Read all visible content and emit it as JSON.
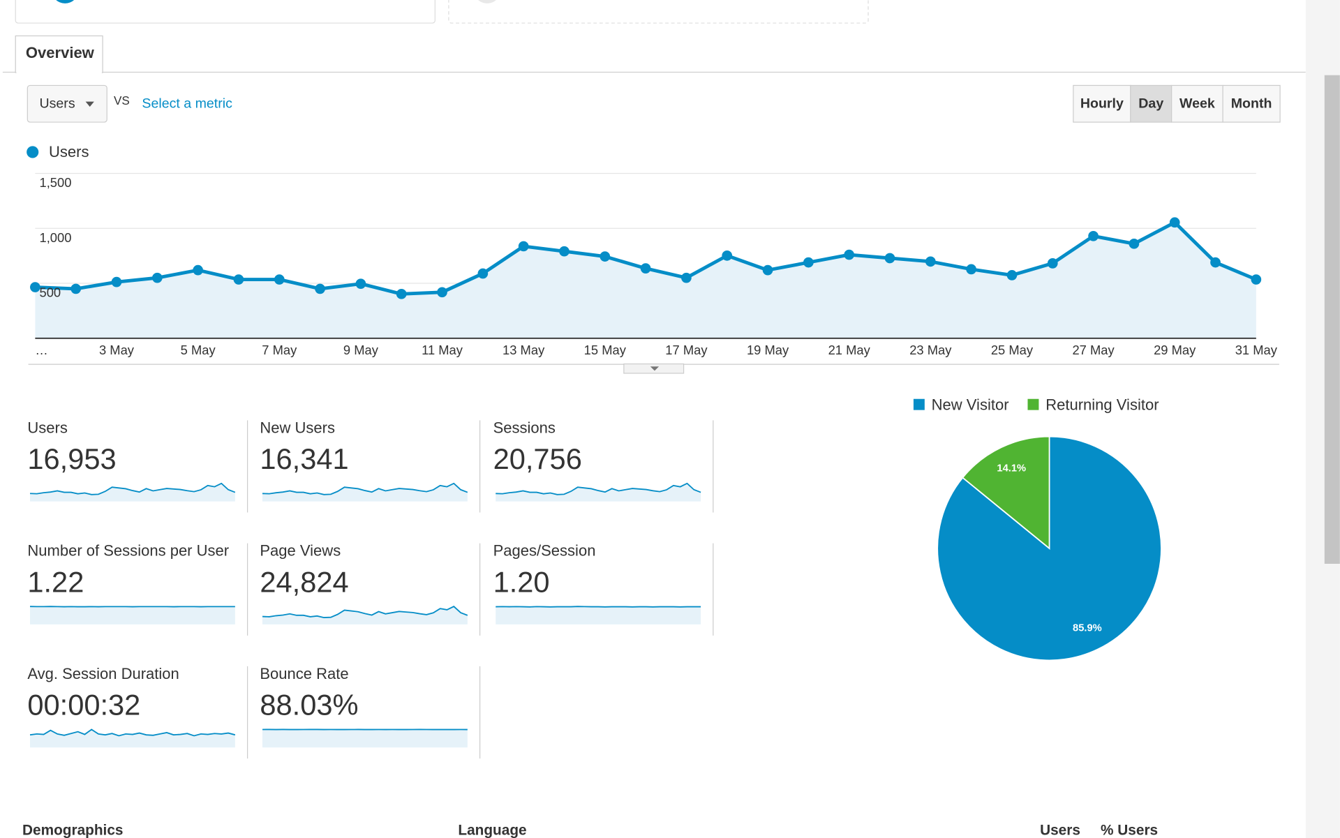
{
  "tabs": [
    "Overview"
  ],
  "controls": {
    "metric": "Users",
    "vs": "VS",
    "select_metric": "Select a metric",
    "periods": [
      "Hourly",
      "Day",
      "Week",
      "Month"
    ],
    "active_period": 1
  },
  "chart_data": [
    {
      "type": "line",
      "area": true,
      "grid": true,
      "categories": [
        "…",
        null,
        "3 May",
        null,
        "5 May",
        null,
        "7 May",
        null,
        "9 May",
        null,
        "11 May",
        null,
        "13 May",
        null,
        "15 May",
        null,
        "17 May",
        null,
        "19 May",
        null,
        "21 May",
        null,
        "23 May",
        null,
        "25 May",
        null,
        "27 May",
        null,
        "29 May",
        null,
        "31 May"
      ],
      "series": [
        {
          "name": "Users",
          "color": "#058dc7",
          "values": [
            465,
            450,
            512,
            550,
            620,
            535,
            535,
            450,
            496,
            403,
            419,
            589,
            837,
            791,
            744,
            636,
            550,
            752,
            620,
            690,
            760,
            729,
            698,
            628,
            574,
            682,
            930,
            860,
            1054,
            690,
            535
          ]
        }
      ],
      "ylim": [
        0,
        1500
      ],
      "yticks": [
        500,
        {
          "value": 1000,
          "label": "1,000"
        },
        {
          "value": 1500,
          "label": "1,500"
        }
      ]
    },
    {
      "type": "pie",
      "legend": "top",
      "categories": [
        "New Visitor",
        "Returning Visitor"
      ],
      "values": [
        85.9,
        14.1
      ],
      "value_labels": [
        "85.9%",
        "14.1%"
      ],
      "colors": [
        "#058dc7",
        "#50b432"
      ]
    }
  ],
  "metrics": [
    {
      "label": "Users",
      "value": "16,953"
    },
    {
      "label": "New Users",
      "value": "16,341",
      "trend": [
        445,
        432,
        490,
        528,
        595,
        514,
        513,
        432,
        476,
        387,
        402,
        565,
        803,
        760,
        714,
        611,
        528,
        722,
        595,
        662,
        730,
        700,
        670,
        603,
        551,
        655,
        893,
        826,
        1012,
        662,
        514
      ]
    },
    {
      "label": "Sessions",
      "value": "20,756",
      "trend": [
        567,
        549,
        625,
        671,
        756,
        653,
        653,
        549,
        605,
        492,
        511,
        719,
        1021,
        965,
        908,
        776,
        671,
        917,
        756,
        842,
        927,
        889,
        852,
        766,
        700,
        832,
        1135,
        1049,
        1286,
        842,
        653
      ]
    },
    {
      "label": "Number of Sessions per User",
      "value": "1.22",
      "trend": [
        1.23,
        1.22,
        1.22,
        1.23,
        1.22,
        1.21,
        1.22,
        1.21,
        1.21,
        1.22,
        1.21,
        1.22,
        1.22,
        1.22,
        1.22,
        1.21,
        1.22,
        1.22,
        1.22,
        1.22,
        1.22,
        1.21,
        1.22,
        1.22,
        1.22,
        1.21,
        1.22,
        1.22,
        1.22,
        1.22,
        1.22
      ]
    },
    {
      "label": "Page Views",
      "value": "24,824",
      "trend": [
        679,
        657,
        748,
        803,
        905,
        781,
        781,
        657,
        724,
        588,
        612,
        860,
        1222,
        1155,
        1086,
        929,
        803,
        1098,
        905,
        1007,
        1110,
        1064,
        1019,
        917,
        838,
        996,
        1358,
        1256,
        1539,
        1007,
        781
      ]
    },
    {
      "label": "Pages/Session",
      "value": "1.20",
      "trend": [
        1.2,
        1.21,
        1.2,
        1.21,
        1.2,
        1.19,
        1.21,
        1.2,
        1.19,
        1.2,
        1.2,
        1.2,
        1.22,
        1.21,
        1.2,
        1.2,
        1.19,
        1.2,
        1.2,
        1.2,
        1.19,
        1.2,
        1.2,
        1.19,
        1.2,
        1.2,
        1.2,
        1.19,
        1.2,
        1.2,
        1.2
      ]
    },
    {
      "label": "Avg. Session Duration",
      "value": "00:00:32",
      "trend": [
        28,
        30,
        29,
        38,
        30,
        27,
        31,
        35,
        29,
        40,
        30,
        28,
        31,
        26,
        30,
        29,
        32,
        28,
        27,
        30,
        33,
        28,
        29,
        31,
        26,
        30,
        29,
        31,
        30,
        32,
        28
      ]
    },
    {
      "label": "Bounce Rate",
      "value": "88.03%",
      "trend": [
        88.1,
        88.3,
        88,
        88.2,
        87.8,
        88,
        88.1,
        88.3,
        88.2,
        88,
        88.1,
        88,
        88,
        88.1,
        88.2,
        88,
        88,
        88.1,
        88,
        88.1,
        88,
        88,
        88.1,
        88.2,
        88.1,
        88,
        88,
        87.9,
        88,
        88.1,
        88
      ]
    }
  ],
  "footer": [
    "Demographics",
    "Language",
    "Users",
    "% Users"
  ]
}
